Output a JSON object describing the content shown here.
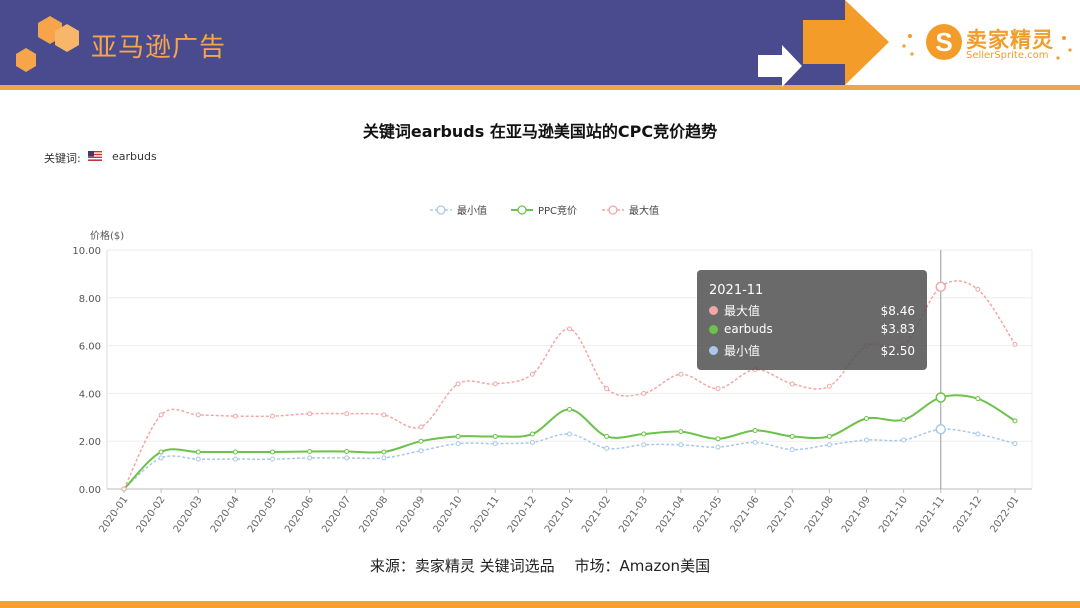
{
  "header": {
    "title": "亚马逊广告"
  },
  "logo": {
    "name": "卖家精灵",
    "site": "SellerSprite.com"
  },
  "keyword": {
    "label": "关键词:",
    "value": "earbuds"
  },
  "source": {
    "text": "来源：卖家精灵 关键词选品　 市场：Amazon美国"
  },
  "colors": {
    "min": "#a9c8ec",
    "ppc": "#6cc24a",
    "max": "#f4a6a6",
    "header": "#4a4a8f",
    "accent": "#f5a34b"
  },
  "chart_data": {
    "type": "line",
    "title": "关键词earbuds 在亚马逊美国站的CPC竞价趋势",
    "ylabel": "价格($)",
    "ylim": [
      0,
      10
    ],
    "yticks": [
      "0.00",
      "2.00",
      "4.00",
      "6.00",
      "8.00",
      "10.00"
    ],
    "grid": true,
    "legend_position": "top-center",
    "categories": [
      "2020-01",
      "2020-02",
      "2020-03",
      "2020-04",
      "2020-05",
      "2020-06",
      "2020-07",
      "2020-08",
      "2020-09",
      "2020-10",
      "2020-11",
      "2020-12",
      "2021-01",
      "2021-02",
      "2021-03",
      "2021-04",
      "2021-05",
      "2021-06",
      "2021-07",
      "2021-08",
      "2021-09",
      "2021-10",
      "2021-11",
      "2021-12",
      "2022-01"
    ],
    "series": [
      {
        "name": "最小值",
        "values": [
          0.0,
          1.3,
          1.25,
          1.25,
          1.25,
          1.3,
          1.3,
          1.3,
          1.6,
          1.9,
          1.9,
          1.95,
          2.3,
          1.7,
          1.85,
          1.85,
          1.75,
          1.95,
          1.65,
          1.85,
          2.05,
          2.05,
          2.5,
          2.3,
          1.9
        ]
      },
      {
        "name": "PPC竞价",
        "values": [
          0.0,
          1.55,
          1.55,
          1.55,
          1.55,
          1.57,
          1.57,
          1.55,
          2.0,
          2.2,
          2.2,
          2.3,
          3.33,
          2.2,
          2.3,
          2.4,
          2.1,
          2.45,
          2.2,
          2.2,
          2.95,
          2.9,
          3.83,
          3.78,
          2.85
        ]
      },
      {
        "name": "最大值",
        "values": [
          0.0,
          3.1,
          3.1,
          3.05,
          3.05,
          3.15,
          3.15,
          3.1,
          2.6,
          4.4,
          4.4,
          4.8,
          6.7,
          4.2,
          4.0,
          4.8,
          4.2,
          5.0,
          4.4,
          4.3,
          6.0,
          6.0,
          8.46,
          8.35,
          6.05
        ]
      }
    ],
    "tooltip": {
      "title": "2021-11",
      "rows": [
        {
          "name": "最大值",
          "value": "$8.46"
        },
        {
          "name": "earbuds",
          "value": "$3.83"
        },
        {
          "name": "最小值",
          "value": "$2.50"
        }
      ]
    }
  }
}
